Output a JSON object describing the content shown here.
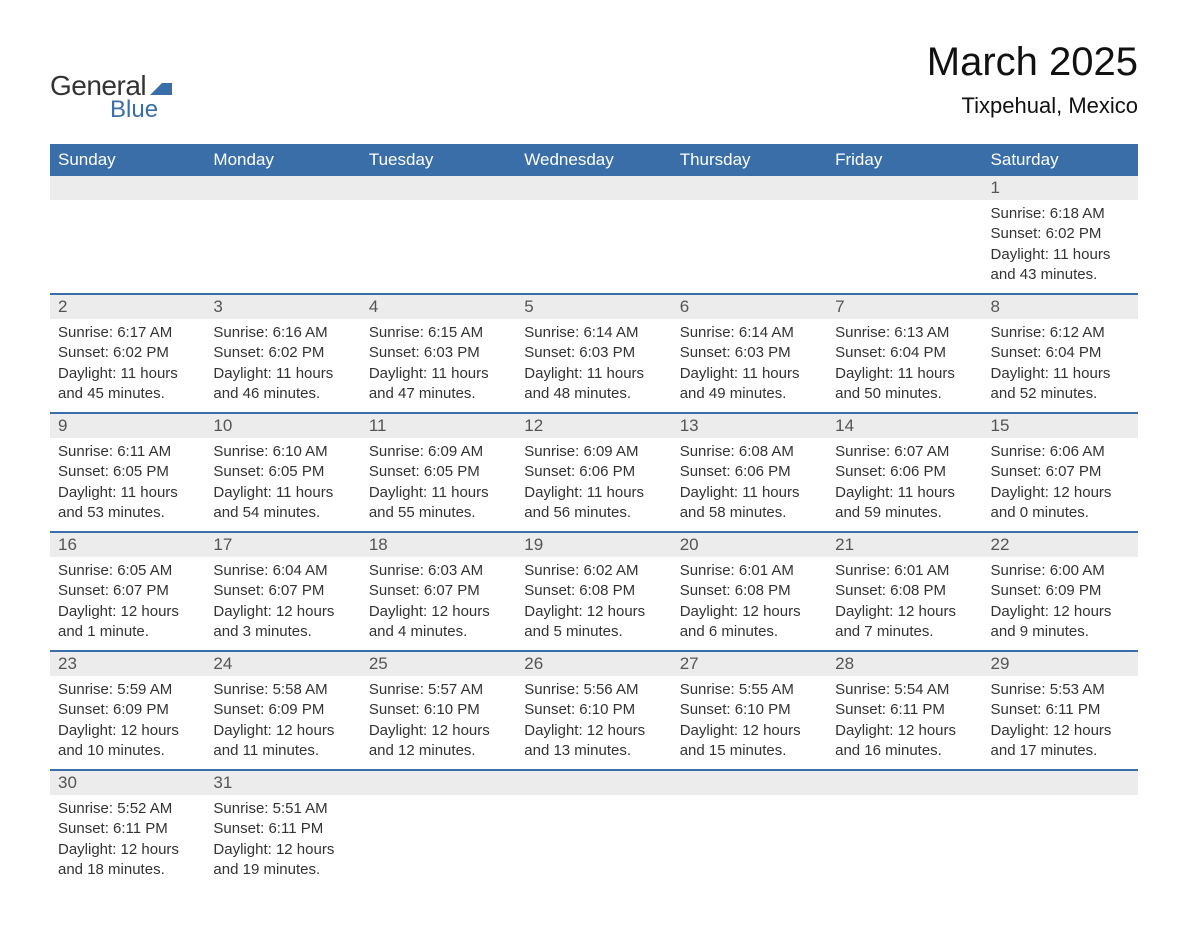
{
  "logo": {
    "text_general": "General",
    "text_blue": "Blue",
    "shape_color": "#3a6ea8"
  },
  "title": "March 2025",
  "location": "Tixpehual, Mexico",
  "colors": {
    "header_bg": "#3a6ea8",
    "header_text": "#ffffff",
    "daynum_bg": "#ececec",
    "daynum_text": "#555555",
    "body_text": "#333333",
    "divider": "#3a6ea8"
  },
  "typography": {
    "title_fontsize": 40,
    "location_fontsize": 22,
    "header_fontsize": 17,
    "daynum_fontsize": 17,
    "content_fontsize": 15
  },
  "calendar": {
    "type": "table",
    "columns": [
      "Sunday",
      "Monday",
      "Tuesday",
      "Wednesday",
      "Thursday",
      "Friday",
      "Saturday"
    ],
    "weeks": [
      [
        null,
        null,
        null,
        null,
        null,
        null,
        {
          "day": "1",
          "sunrise": "Sunrise: 6:18 AM",
          "sunset": "Sunset: 6:02 PM",
          "daylight1": "Daylight: 11 hours",
          "daylight2": "and 43 minutes."
        }
      ],
      [
        {
          "day": "2",
          "sunrise": "Sunrise: 6:17 AM",
          "sunset": "Sunset: 6:02 PM",
          "daylight1": "Daylight: 11 hours",
          "daylight2": "and 45 minutes."
        },
        {
          "day": "3",
          "sunrise": "Sunrise: 6:16 AM",
          "sunset": "Sunset: 6:02 PM",
          "daylight1": "Daylight: 11 hours",
          "daylight2": "and 46 minutes."
        },
        {
          "day": "4",
          "sunrise": "Sunrise: 6:15 AM",
          "sunset": "Sunset: 6:03 PM",
          "daylight1": "Daylight: 11 hours",
          "daylight2": "and 47 minutes."
        },
        {
          "day": "5",
          "sunrise": "Sunrise: 6:14 AM",
          "sunset": "Sunset: 6:03 PM",
          "daylight1": "Daylight: 11 hours",
          "daylight2": "and 48 minutes."
        },
        {
          "day": "6",
          "sunrise": "Sunrise: 6:14 AM",
          "sunset": "Sunset: 6:03 PM",
          "daylight1": "Daylight: 11 hours",
          "daylight2": "and 49 minutes."
        },
        {
          "day": "7",
          "sunrise": "Sunrise: 6:13 AM",
          "sunset": "Sunset: 6:04 PM",
          "daylight1": "Daylight: 11 hours",
          "daylight2": "and 50 minutes."
        },
        {
          "day": "8",
          "sunrise": "Sunrise: 6:12 AM",
          "sunset": "Sunset: 6:04 PM",
          "daylight1": "Daylight: 11 hours",
          "daylight2": "and 52 minutes."
        }
      ],
      [
        {
          "day": "9",
          "sunrise": "Sunrise: 6:11 AM",
          "sunset": "Sunset: 6:05 PM",
          "daylight1": "Daylight: 11 hours",
          "daylight2": "and 53 minutes."
        },
        {
          "day": "10",
          "sunrise": "Sunrise: 6:10 AM",
          "sunset": "Sunset: 6:05 PM",
          "daylight1": "Daylight: 11 hours",
          "daylight2": "and 54 minutes."
        },
        {
          "day": "11",
          "sunrise": "Sunrise: 6:09 AM",
          "sunset": "Sunset: 6:05 PM",
          "daylight1": "Daylight: 11 hours",
          "daylight2": "and 55 minutes."
        },
        {
          "day": "12",
          "sunrise": "Sunrise: 6:09 AM",
          "sunset": "Sunset: 6:06 PM",
          "daylight1": "Daylight: 11 hours",
          "daylight2": "and 56 minutes."
        },
        {
          "day": "13",
          "sunrise": "Sunrise: 6:08 AM",
          "sunset": "Sunset: 6:06 PM",
          "daylight1": "Daylight: 11 hours",
          "daylight2": "and 58 minutes."
        },
        {
          "day": "14",
          "sunrise": "Sunrise: 6:07 AM",
          "sunset": "Sunset: 6:06 PM",
          "daylight1": "Daylight: 11 hours",
          "daylight2": "and 59 minutes."
        },
        {
          "day": "15",
          "sunrise": "Sunrise: 6:06 AM",
          "sunset": "Sunset: 6:07 PM",
          "daylight1": "Daylight: 12 hours",
          "daylight2": "and 0 minutes."
        }
      ],
      [
        {
          "day": "16",
          "sunrise": "Sunrise: 6:05 AM",
          "sunset": "Sunset: 6:07 PM",
          "daylight1": "Daylight: 12 hours",
          "daylight2": "and 1 minute."
        },
        {
          "day": "17",
          "sunrise": "Sunrise: 6:04 AM",
          "sunset": "Sunset: 6:07 PM",
          "daylight1": "Daylight: 12 hours",
          "daylight2": "and 3 minutes."
        },
        {
          "day": "18",
          "sunrise": "Sunrise: 6:03 AM",
          "sunset": "Sunset: 6:07 PM",
          "daylight1": "Daylight: 12 hours",
          "daylight2": "and 4 minutes."
        },
        {
          "day": "19",
          "sunrise": "Sunrise: 6:02 AM",
          "sunset": "Sunset: 6:08 PM",
          "daylight1": "Daylight: 12 hours",
          "daylight2": "and 5 minutes."
        },
        {
          "day": "20",
          "sunrise": "Sunrise: 6:01 AM",
          "sunset": "Sunset: 6:08 PM",
          "daylight1": "Daylight: 12 hours",
          "daylight2": "and 6 minutes."
        },
        {
          "day": "21",
          "sunrise": "Sunrise: 6:01 AM",
          "sunset": "Sunset: 6:08 PM",
          "daylight1": "Daylight: 12 hours",
          "daylight2": "and 7 minutes."
        },
        {
          "day": "22",
          "sunrise": "Sunrise: 6:00 AM",
          "sunset": "Sunset: 6:09 PM",
          "daylight1": "Daylight: 12 hours",
          "daylight2": "and 9 minutes."
        }
      ],
      [
        {
          "day": "23",
          "sunrise": "Sunrise: 5:59 AM",
          "sunset": "Sunset: 6:09 PM",
          "daylight1": "Daylight: 12 hours",
          "daylight2": "and 10 minutes."
        },
        {
          "day": "24",
          "sunrise": "Sunrise: 5:58 AM",
          "sunset": "Sunset: 6:09 PM",
          "daylight1": "Daylight: 12 hours",
          "daylight2": "and 11 minutes."
        },
        {
          "day": "25",
          "sunrise": "Sunrise: 5:57 AM",
          "sunset": "Sunset: 6:10 PM",
          "daylight1": "Daylight: 12 hours",
          "daylight2": "and 12 minutes."
        },
        {
          "day": "26",
          "sunrise": "Sunrise: 5:56 AM",
          "sunset": "Sunset: 6:10 PM",
          "daylight1": "Daylight: 12 hours",
          "daylight2": "and 13 minutes."
        },
        {
          "day": "27",
          "sunrise": "Sunrise: 5:55 AM",
          "sunset": "Sunset: 6:10 PM",
          "daylight1": "Daylight: 12 hours",
          "daylight2": "and 15 minutes."
        },
        {
          "day": "28",
          "sunrise": "Sunrise: 5:54 AM",
          "sunset": "Sunset: 6:11 PM",
          "daylight1": "Daylight: 12 hours",
          "daylight2": "and 16 minutes."
        },
        {
          "day": "29",
          "sunrise": "Sunrise: 5:53 AM",
          "sunset": "Sunset: 6:11 PM",
          "daylight1": "Daylight: 12 hours",
          "daylight2": "and 17 minutes."
        }
      ],
      [
        {
          "day": "30",
          "sunrise": "Sunrise: 5:52 AM",
          "sunset": "Sunset: 6:11 PM",
          "daylight1": "Daylight: 12 hours",
          "daylight2": "and 18 minutes."
        },
        {
          "day": "31",
          "sunrise": "Sunrise: 5:51 AM",
          "sunset": "Sunset: 6:11 PM",
          "daylight1": "Daylight: 12 hours",
          "daylight2": "and 19 minutes."
        },
        null,
        null,
        null,
        null,
        null
      ]
    ]
  }
}
